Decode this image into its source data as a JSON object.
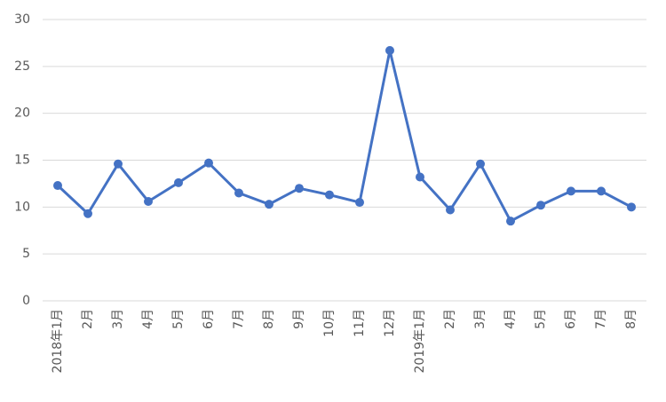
{
  "chart_data": {
    "type": "line",
    "categories": [
      "2018年1月",
      "2月",
      "3月",
      "4月",
      "5月",
      "6月",
      "7月",
      "8月",
      "9月",
      "10月",
      "11月",
      "12月",
      "2019年1月",
      "2月",
      "3月",
      "4月",
      "5月",
      "6月",
      "7月",
      "8月"
    ],
    "values": [
      12.3,
      9.3,
      14.6,
      10.6,
      12.6,
      14.7,
      11.5,
      10.3,
      12.0,
      11.3,
      10.5,
      26.7,
      13.2,
      9.7,
      14.6,
      8.5,
      10.2,
      11.7,
      11.7,
      10.0
    ],
    "color": "#4472c4",
    "ylim": [
      0,
      30
    ],
    "yticks": [
      0,
      5,
      10,
      15,
      20,
      25,
      30
    ],
    "grid": true
  }
}
